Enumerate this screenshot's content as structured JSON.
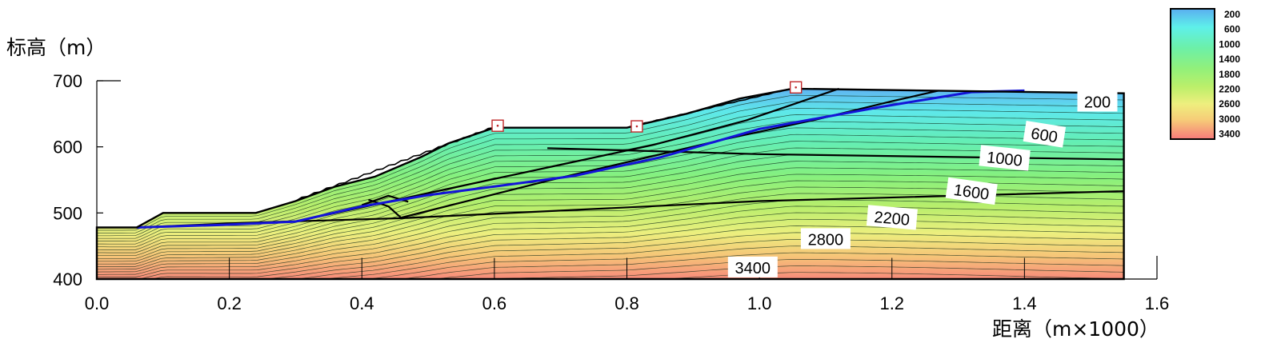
{
  "chart_data": {
    "type": "heatmap",
    "title": "",
    "ylabel": "标高（m）",
    "xlabel": "距离（m×1000）",
    "xlim": [
      0.0,
      1.6
    ],
    "ylim": [
      400,
      700
    ],
    "x_ticks": [
      "0.0",
      "0.2",
      "0.4",
      "0.6",
      "0.8",
      "1.0",
      "1.2",
      "1.4",
      "1.6"
    ],
    "y_ticks": [
      "700",
      "600",
      "500",
      "400"
    ],
    "colorbar": {
      "labels": [
        "200",
        "600",
        "1000",
        "1400",
        "1800",
        "2200",
        "2600",
        "3000",
        "3400"
      ],
      "colors": [
        "#5ab0f0",
        "#5ef0e8",
        "#6cf0a8",
        "#92f07a",
        "#bcef6a",
        "#eeef7e",
        "#f6cd78",
        "#f8a07a",
        "#f77a7a"
      ],
      "placement": "top-right"
    },
    "contour_labels": [
      {
        "text": "200",
        "x": 1.51,
        "y": 668,
        "angle": 0
      },
      {
        "text": "600",
        "x": 1.43,
        "y": 618,
        "angle": 9
      },
      {
        "text": "1000",
        "x": 1.37,
        "y": 582,
        "angle": 6
      },
      {
        "text": "1600",
        "x": 1.32,
        "y": 532,
        "angle": 8
      },
      {
        "text": "2200",
        "x": 1.2,
        "y": 492,
        "angle": 5
      },
      {
        "text": "2800",
        "x": 1.1,
        "y": 460,
        "angle": 0
      },
      {
        "text": "3400",
        "x": 0.99,
        "y": 417,
        "angle": 0
      }
    ],
    "ground_surface": [
      [
        0.0,
        478
      ],
      [
        0.06,
        478
      ],
      [
        0.1,
        500
      ],
      [
        0.24,
        500
      ],
      [
        0.3,
        518
      ],
      [
        0.36,
        540
      ],
      [
        0.42,
        555
      ],
      [
        0.49,
        585
      ],
      [
        0.53,
        605
      ],
      [
        0.6,
        629
      ],
      [
        0.8,
        629
      ],
      [
        0.89,
        650
      ],
      [
        0.97,
        673
      ],
      [
        1.05,
        688
      ],
      [
        1.55,
        681
      ],
      [
        1.55,
        400
      ]
    ],
    "slip_surface": [
      [
        0.06,
        478
      ],
      [
        0.19,
        482
      ],
      [
        0.3,
        487
      ],
      [
        0.4,
        510
      ],
      [
        0.5,
        527
      ],
      [
        0.6,
        540
      ],
      [
        0.72,
        556
      ],
      [
        0.85,
        584
      ],
      [
        1.0,
        627
      ],
      [
        1.18,
        660
      ],
      [
        1.32,
        683
      ],
      [
        1.4,
        685
      ]
    ],
    "geologic_lines": [
      [
        [
          0.06,
          478
        ],
        [
          0.22,
          485
        ],
        [
          0.46,
          492
        ],
        [
          1.0,
          518
        ],
        [
          1.55,
          533
        ]
      ],
      [
        [
          0.68,
          598
        ],
        [
          1.0,
          589
        ],
        [
          1.55,
          581
        ]
      ],
      [
        [
          0.3,
          487
        ],
        [
          0.5,
          530
        ],
        [
          0.7,
          573
        ],
        [
          0.84,
          603
        ],
        [
          0.98,
          640
        ],
        [
          1.12,
          688
        ]
      ],
      [
        [
          0.46,
          493
        ],
        [
          0.69,
          551
        ],
        [
          0.95,
          612
        ],
        [
          1.08,
          640
        ],
        [
          1.2,
          669
        ],
        [
          1.27,
          685
        ]
      ],
      [
        [
          0.41,
          520
        ],
        [
          0.44,
          510
        ],
        [
          0.46,
          492
        ]
      ],
      [
        [
          0.4,
          512
        ],
        [
          0.44,
          526
        ],
        [
          0.47,
          517
        ]
      ]
    ],
    "markers": [
      {
        "x": 0.605,
        "y": 632
      },
      {
        "x": 0.815,
        "y": 631
      },
      {
        "x": 1.055,
        "y": 690
      }
    ]
  }
}
